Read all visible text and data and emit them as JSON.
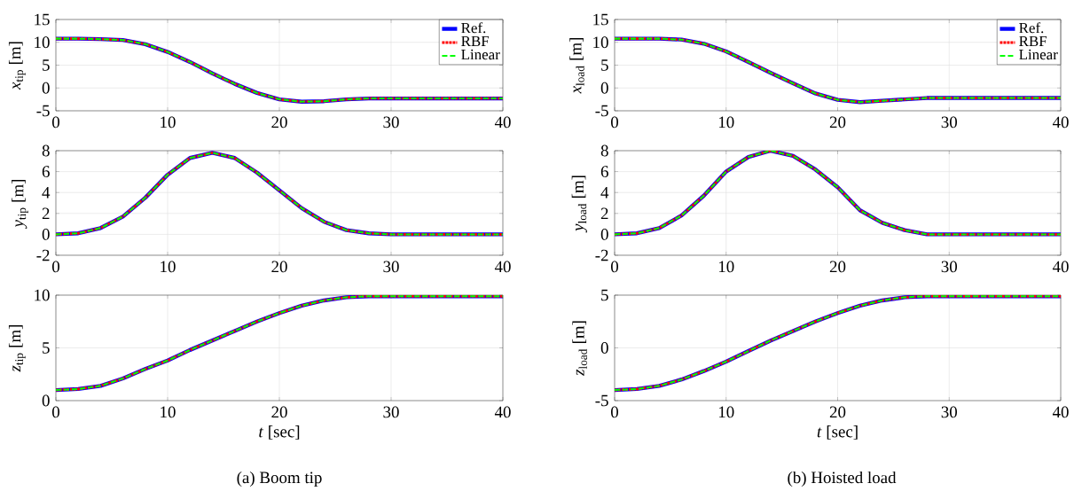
{
  "chart_data": [
    {
      "type": "line",
      "ylabel": "*x*$_{tip}$ [m]",
      "x": [
        0,
        2,
        4,
        6,
        8,
        10,
        12,
        14,
        16,
        18,
        20,
        22,
        24,
        26,
        28,
        30,
        34,
        40
      ],
      "xlim": [
        0,
        40
      ],
      "xticks": [
        0,
        10,
        20,
        30,
        40
      ],
      "ylim": [
        -5,
        15
      ],
      "yticks": [
        -5,
        0,
        5,
        10,
        15
      ],
      "grid": true,
      "legend": "top right",
      "marker": "none",
      "series": [
        {
          "name": "Ref.",
          "color": "#0000ff",
          "line_style": "solid",
          "values": [
            10.8,
            10.8,
            10.7,
            10.5,
            9.6,
            7.9,
            5.7,
            3.2,
            0.9,
            -1.1,
            -2.5,
            -3.0,
            -2.9,
            -2.5,
            -2.3,
            -2.3,
            -2.3,
            -2.3
          ]
        },
        {
          "name": "RBF",
          "color": "#ff0000",
          "line_style": "dotted",
          "values": [
            10.8,
            10.8,
            10.7,
            10.5,
            9.6,
            7.9,
            5.7,
            3.2,
            0.9,
            -1.1,
            -2.5,
            -3.0,
            -2.9,
            -2.5,
            -2.3,
            -2.3,
            -2.3,
            -2.3
          ]
        },
        {
          "name": "Linear",
          "color": "#00ff00",
          "line_style": "dashed",
          "values": [
            10.8,
            10.8,
            10.7,
            10.5,
            9.6,
            7.9,
            5.7,
            3.2,
            0.9,
            -1.1,
            -2.5,
            -3.0,
            -2.9,
            -2.5,
            -2.3,
            -2.3,
            -2.3,
            -2.3
          ]
        }
      ]
    },
    {
      "type": "line",
      "ylabel": "*y*$_{tip}$ [m]",
      "x": [
        0,
        2,
        4,
        6,
        8,
        10,
        12,
        14,
        16,
        18,
        20,
        22,
        24,
        26,
        28,
        30,
        34,
        40
      ],
      "xlim": [
        0,
        40
      ],
      "xticks": [
        0,
        10,
        20,
        30,
        40
      ],
      "ylim": [
        -2,
        8
      ],
      "yticks": [
        -2,
        0,
        2,
        4,
        6,
        8
      ],
      "grid": true,
      "marker": "none",
      "series": [
        {
          "color": "#0000ff",
          "line_style": "solid",
          "values": [
            0,
            0.1,
            0.6,
            1.7,
            3.5,
            5.7,
            7.3,
            7.8,
            7.3,
            5.9,
            4.2,
            2.5,
            1.2,
            0.4,
            0.1,
            0,
            0,
            0
          ]
        },
        {
          "color": "#ff0000",
          "line_style": "dotted",
          "values": [
            0,
            0.1,
            0.6,
            1.7,
            3.5,
            5.7,
            7.3,
            7.8,
            7.3,
            5.9,
            4.2,
            2.5,
            1.2,
            0.4,
            0.1,
            0,
            0,
            0
          ]
        },
        {
          "color": "#00ff00",
          "line_style": "dashed",
          "values": [
            0,
            0.1,
            0.6,
            1.7,
            3.5,
            5.7,
            7.3,
            7.8,
            7.3,
            5.9,
            4.2,
            2.5,
            1.2,
            0.4,
            0.1,
            0,
            0,
            0
          ]
        }
      ]
    },
    {
      "type": "line",
      "ylabel": "*z*$_{tip}$ [m]",
      "xlabel": "*t* [sec]",
      "annotations": [
        "(a) Boom tip"
      ],
      "x": [
        0,
        2,
        4,
        6,
        8,
        10,
        12,
        14,
        16,
        18,
        20,
        22,
        24,
        26,
        28,
        30,
        34,
        40
      ],
      "xlim": [
        0,
        40
      ],
      "xticks": [
        0,
        10,
        20,
        30,
        40
      ],
      "ylim": [
        0,
        10
      ],
      "yticks": [
        0,
        5,
        10
      ],
      "grid": true,
      "marker": "none",
      "series": [
        {
          "color": "#0000ff",
          "line_style": "solid",
          "values": [
            1,
            1.1,
            1.4,
            2.1,
            3,
            3.8,
            4.8,
            5.7,
            6.6,
            7.5,
            8.3,
            9.0,
            9.5,
            9.8,
            9.9,
            9.9,
            9.9,
            9.9
          ]
        },
        {
          "color": "#ff0000",
          "line_style": "dotted",
          "values": [
            1,
            1.1,
            1.4,
            2.1,
            3,
            3.8,
            4.8,
            5.7,
            6.6,
            7.5,
            8.3,
            9.0,
            9.5,
            9.8,
            9.9,
            9.9,
            9.9,
            9.9
          ]
        },
        {
          "color": "#00ff00",
          "line_style": "dashed",
          "values": [
            1,
            1.1,
            1.4,
            2.1,
            3,
            3.8,
            4.8,
            5.7,
            6.6,
            7.5,
            8.3,
            9.0,
            9.5,
            9.8,
            9.9,
            9.9,
            9.9,
            9.9
          ]
        }
      ]
    },
    {
      "type": "line",
      "ylabel": "*x*$_{load}$ [m]",
      "x": [
        0,
        2,
        4,
        6,
        8,
        10,
        12,
        14,
        16,
        18,
        20,
        22,
        24,
        26,
        28,
        30,
        34,
        40
      ],
      "xlim": [
        0,
        40
      ],
      "xticks": [
        0,
        10,
        20,
        30,
        40
      ],
      "ylim": [
        -5,
        15
      ],
      "yticks": [
        -5,
        0,
        5,
        10,
        15
      ],
      "grid": true,
      "legend": "top right",
      "marker": "none",
      "series": [
        {
          "name": "Ref.",
          "color": "#0000ff",
          "line_style": "solid",
          "values": [
            10.8,
            10.8,
            10.8,
            10.6,
            9.7,
            8.0,
            5.7,
            3.3,
            1.0,
            -1.2,
            -2.6,
            -3.1,
            -2.8,
            -2.5,
            -2.2,
            -2.2,
            -2.2,
            -2.2
          ]
        },
        {
          "name": "RBF",
          "color": "#ff0000",
          "line_style": "dotted",
          "values": [
            10.8,
            10.8,
            10.8,
            10.6,
            9.7,
            8.0,
            5.7,
            3.3,
            1.0,
            -1.2,
            -2.6,
            -3.1,
            -2.8,
            -2.5,
            -2.2,
            -2.2,
            -2.2,
            -2.2
          ]
        },
        {
          "name": "Linear",
          "color": "#00ff00",
          "line_style": "dashed",
          "values": [
            10.8,
            10.8,
            10.8,
            10.6,
            9.7,
            8.0,
            5.7,
            3.3,
            1.0,
            -1.2,
            -2.6,
            -3.1,
            -2.8,
            -2.5,
            -2.2,
            -2.2,
            -2.2,
            -2.2
          ]
        }
      ]
    },
    {
      "type": "line",
      "ylabel": "*y*$_{load}$ [m]",
      "x": [
        0,
        2,
        4,
        6,
        8,
        10,
        12,
        14,
        16,
        18,
        20,
        22,
        24,
        26,
        28,
        30,
        34,
        40
      ],
      "xlim": [
        0,
        40
      ],
      "xticks": [
        0,
        10,
        20,
        30,
        40
      ],
      "ylim": [
        -2,
        8
      ],
      "yticks": [
        -2,
        0,
        2,
        4,
        6,
        8
      ],
      "grid": true,
      "marker": "none",
      "series": [
        {
          "color": "#0000ff",
          "line_style": "solid",
          "values": [
            0,
            0.1,
            0.6,
            1.8,
            3.7,
            6.0,
            7.4,
            8.0,
            7.5,
            6.2,
            4.5,
            2.3,
            1.1,
            0.4,
            0,
            0,
            0,
            0
          ]
        },
        {
          "color": "#ff0000",
          "line_style": "dotted",
          "values": [
            0,
            0.1,
            0.6,
            1.8,
            3.7,
            6.0,
            7.4,
            8.0,
            7.5,
            6.2,
            4.5,
            2.3,
            1.1,
            0.4,
            0,
            0,
            0,
            0
          ]
        },
        {
          "color": "#00ff00",
          "line_style": "dashed",
          "values": [
            0,
            0.1,
            0.6,
            1.8,
            3.7,
            6.0,
            7.4,
            8.0,
            7.5,
            6.2,
            4.5,
            2.3,
            1.1,
            0.4,
            0,
            0,
            0,
            0
          ]
        }
      ]
    },
    {
      "type": "line",
      "ylabel": "*z*$_{load}$ [m]",
      "xlabel": "*t* [sec]",
      "annotations": [
        "(b) Hoisted load"
      ],
      "x": [
        0,
        2,
        4,
        6,
        8,
        10,
        12,
        14,
        16,
        18,
        20,
        22,
        24,
        26,
        28,
        30,
        34,
        40
      ],
      "xlim": [
        0,
        40
      ],
      "xticks": [
        0,
        10,
        20,
        30,
        40
      ],
      "ylim": [
        -5,
        5
      ],
      "yticks": [
        -5,
        0,
        5
      ],
      "grid": true,
      "marker": "none",
      "series": [
        {
          "color": "#0000ff",
          "line_style": "solid",
          "values": [
            -4,
            -3.9,
            -3.6,
            -3.0,
            -2.2,
            -1.3,
            -0.3,
            0.7,
            1.6,
            2.5,
            3.3,
            4.0,
            4.5,
            4.8,
            4.9,
            4.9,
            4.9,
            4.9
          ]
        },
        {
          "color": "#ff0000",
          "line_style": "dotted",
          "values": [
            -4,
            -3.9,
            -3.6,
            -3.0,
            -2.2,
            -1.3,
            -0.3,
            0.7,
            1.6,
            2.5,
            3.3,
            4.0,
            4.5,
            4.8,
            4.9,
            4.9,
            4.9,
            4.9
          ]
        },
        {
          "color": "#00ff00",
          "line_style": "dashed",
          "values": [
            -4,
            -3.9,
            -3.6,
            -3.0,
            -2.2,
            -1.3,
            -0.3,
            0.7,
            1.6,
            2.5,
            3.3,
            4.0,
            4.5,
            4.8,
            4.9,
            4.9,
            4.9,
            4.9
          ]
        }
      ]
    }
  ]
}
